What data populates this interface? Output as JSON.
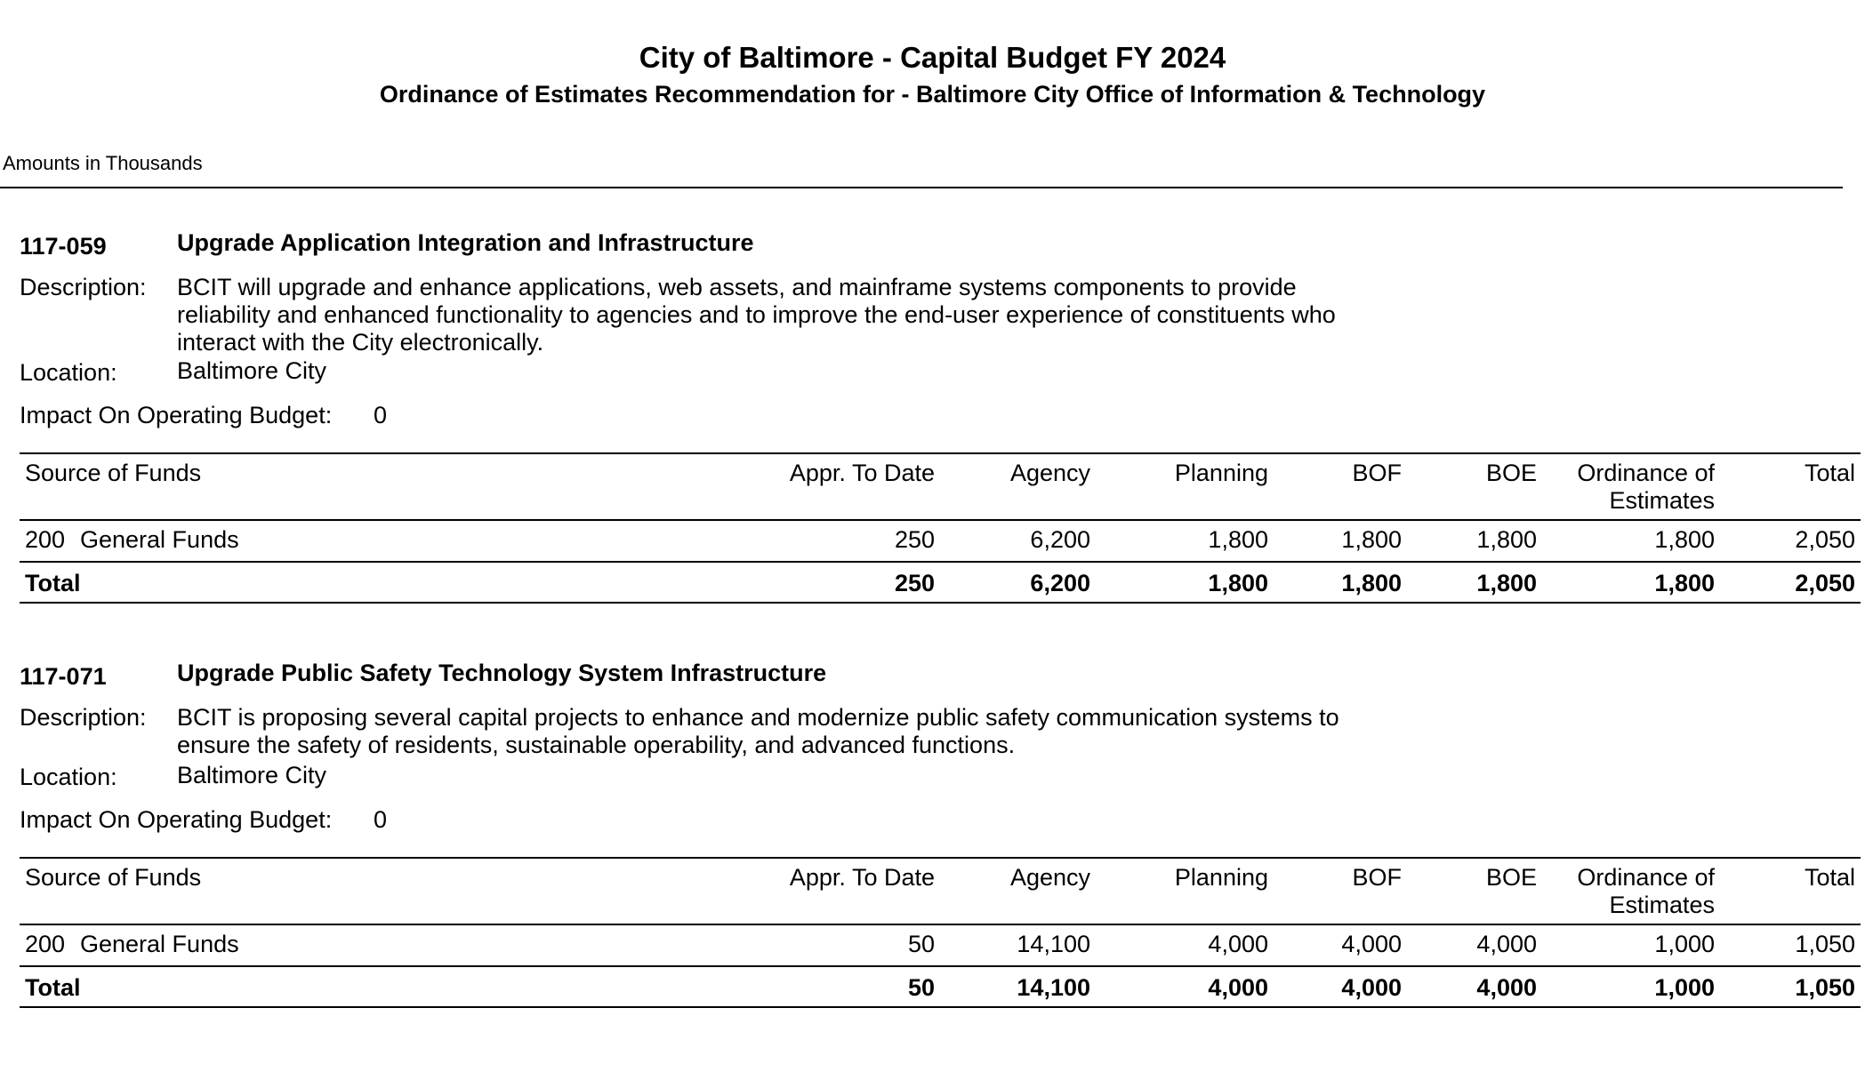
{
  "header": {
    "title": "City of Baltimore - Capital Budget FY 2024",
    "subtitle": "Ordinance of Estimates Recommendation for - Baltimore City Office of Information & Technology",
    "units": "Amounts in Thousands"
  },
  "labels": {
    "description": "Description:",
    "location": "Location:",
    "impact": "Impact On Operating Budget:"
  },
  "columns": [
    "Source of Funds",
    "Appr. To Date",
    "Agency",
    "Planning",
    "BOF",
    "BOE",
    "Ordinance of Estimates",
    "Total"
  ],
  "projects": [
    {
      "id": "117-059",
      "name": "Upgrade Application Integration and Infrastructure",
      "description_lines": [
        "BCIT will upgrade and enhance applications, web assets, and mainframe systems components to provide",
        "reliability and enhanced functionality to agencies and to improve the end-user experience of constituents who",
        "interact with the City electronically."
      ],
      "location": "Baltimore City",
      "impact": "0",
      "fund": {
        "code": "200",
        "name": "General Funds",
        "values": [
          "250",
          "6,200",
          "1,800",
          "1,800",
          "1,800",
          "1,800",
          "2,050"
        ]
      },
      "total": {
        "label": "Total",
        "values": [
          "250",
          "6,200",
          "1,800",
          "1,800",
          "1,800",
          "1,800",
          "2,050"
        ]
      }
    },
    {
      "id": "117-071",
      "name": "Upgrade Public Safety Technology System Infrastructure",
      "description_lines": [
        "BCIT is proposing several capital projects to enhance and modernize public safety communication systems to",
        "ensure the safety of residents, sustainable operability, and advanced functions."
      ],
      "location": "Baltimore City",
      "impact": "0",
      "fund": {
        "code": "200",
        "name": "General Funds",
        "values": [
          "50",
          "14,100",
          "4,000",
          "4,000",
          "4,000",
          "1,000",
          "1,050"
        ]
      },
      "total": {
        "label": "Total",
        "values": [
          "50",
          "14,100",
          "4,000",
          "4,000",
          "4,000",
          "1,000",
          "1,050"
        ]
      }
    }
  ]
}
